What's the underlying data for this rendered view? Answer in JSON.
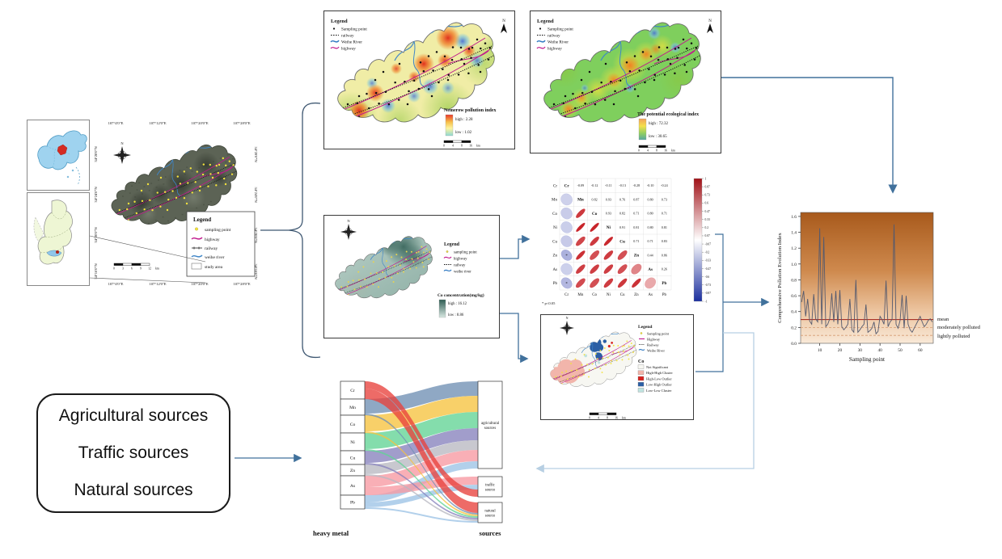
{
  "palette": {
    "arrow": "#41719c",
    "arrow_light": "#b7cfe3",
    "brace": "#3f5872",
    "highway": "#c0188c",
    "river": "#3f86c8",
    "railway": "#111111",
    "sampling_dot_yellow": "#f2e23c",
    "sampling_dot_black": "#111111"
  },
  "locator": {
    "north": "N",
    "satellite_legend": {
      "title": "Legend",
      "items": [
        "sampling point",
        "highway",
        "railway",
        "weihe river",
        "study area"
      ]
    },
    "coords_top": [
      "107°4'0\"E",
      "107°12'0\"E",
      "107°20'0\"E",
      "107°28'0\"E"
    ],
    "coords_bottom": [
      "107°4'0\"E",
      "107°12'0\"E",
      "107°20'0\"E",
      "107°28'0\"E"
    ],
    "coords_left": [
      "34°28'0\"N",
      "34°24'0\"N",
      "34°20'0\"N",
      "34°16'0\"N"
    ],
    "coords_right": [
      "34°28'0\"N",
      "34°24'0\"N",
      "34°20'0\"N",
      "34°16'0\"N"
    ],
    "scale_labels": [
      "0",
      "3",
      "6",
      "9",
      "12"
    ],
    "scale_unit": "km"
  },
  "nemerow": {
    "legend_title": "Legend",
    "legend_items": [
      "Sampling point",
      "railway",
      "Weihe River",
      "highway"
    ],
    "north": "N",
    "index_title": "Nemerow pollution index",
    "high_label": "high : 2.28",
    "low_label": "low : 1.02",
    "scale_labels": [
      "0",
      "4",
      "8",
      "16"
    ],
    "scale_unit": "km"
  },
  "ecological": {
    "legend_title": "Legend",
    "legend_items": [
      "Sampling point",
      "railway",
      "Weihe River",
      "highway"
    ],
    "north": "N",
    "index_title": "The potential ecological index",
    "high_label": "high : 72.32",
    "low_label": "low : 30.65",
    "scale_labels": [
      "0",
      "4",
      "8",
      "16"
    ],
    "scale_unit": "km"
  },
  "co_map": {
    "legend_title": "Legend",
    "legend_items": [
      "sampling point",
      "highway",
      "railway",
      "weihe river"
    ],
    "north": "N",
    "index_title": "Co concentration(mg/kg)",
    "high_label": "high : 16.12",
    "low_label": "low : 8.86"
  },
  "cluster": {
    "legend_title": "Legend",
    "legend_items": [
      "Sampling point",
      "Highway",
      "Railway",
      "Weihe River"
    ],
    "north": "N",
    "metal_label": "Co",
    "classes": [
      {
        "label": "Not Significant",
        "color": "#f7f7f2"
      },
      {
        "label": "High-High Cluster",
        "color": "#f2b5ab"
      },
      {
        "label": "High-Low Outlier",
        "color": "#d7231f"
      },
      {
        "label": "Low-High Outlier",
        "color": "#2b5fa5"
      },
      {
        "label": "Low-Low Cluster",
        "color": "#bfe3e0"
      }
    ],
    "scale_labels": [
      "0",
      "4",
      "8",
      "16"
    ],
    "scale_unit": "km"
  },
  "sources_box": {
    "lines": [
      "Agricultural sources",
      "Traffic sources",
      "Natural sources"
    ]
  },
  "chart_data": [
    {
      "type": "heatmap",
      "name": "correlation-matrix",
      "elements": [
        "Cr",
        "Mn",
        "Co",
        "Ni",
        "Cu",
        "Zn",
        "As",
        "Pb"
      ],
      "matrix": [
        [
          1,
          -0.09,
          -0.12,
          -0.11,
          -0.13,
          -0.28,
          -0.1,
          -0.24
        ],
        [
          -0.09,
          1,
          0.82,
          0.93,
          0.76,
          0.87,
          0.8,
          0.73
        ],
        [
          -0.12,
          0.82,
          1,
          0.93,
          0.82,
          0.71,
          0.8,
          0.71
        ],
        [
          -0.11,
          0.93,
          0.93,
          1,
          0.91,
          0.81,
          0.8,
          0.81
        ],
        [
          -0.13,
          0.76,
          0.82,
          0.91,
          1,
          0.71,
          0.71,
          0.83
        ],
        [
          -0.28,
          0.87,
          0.71,
          0.81,
          0.71,
          1,
          0.44,
          0.86
        ],
        [
          -0.1,
          0.8,
          0.8,
          0.8,
          0.71,
          0.44,
          1,
          0.26
        ],
        [
          -0.24,
          0.73,
          0.71,
          0.81,
          0.83,
          0.86,
          0.26,
          1
        ]
      ],
      "colorbar_ticks": [
        1,
        0.87,
        0.73,
        0.6,
        0.47,
        0.33,
        0.2,
        0.07,
        -0.07,
        -0.2,
        -0.33,
        -0.47,
        -0.6,
        -0.73,
        -0.87,
        -1
      ],
      "note": "* p<0.05",
      "legend_position": "right"
    },
    {
      "type": "line",
      "name": "comprehensive-pollution-evolution",
      "xlabel": "Sampling point",
      "ylabel": "Comprehensive Pollution Evolution Index",
      "x_ticks": [
        10,
        20,
        30,
        40,
        50,
        60
      ],
      "y_ticks": [
        "0.0",
        "0.2",
        "0.4",
        "0.6",
        "0.8",
        "1.0",
        "1.2",
        "1.4",
        "1.6"
      ],
      "ylim": [
        0,
        1.65
      ],
      "values": [
        0.52,
        0.66,
        0.34,
        0.56,
        0.28,
        0.24,
        0.62,
        0.31,
        0.27,
        1.45,
        0.24,
        1.34,
        0.21,
        0.24,
        0.31,
        0.63,
        0.27,
        0.66,
        0.24,
        0.67,
        0.21,
        0.17,
        0.2,
        0.24,
        0.56,
        0.17,
        0.14,
        0.8,
        0.14,
        0.17,
        0.21,
        0.24,
        0.49,
        0.14,
        0.16,
        0.19,
        0.27,
        0.12,
        0.15,
        0.34,
        0.3,
        0.24,
        0.79,
        0.21,
        0.27,
        0.3,
        1.5,
        0.24,
        0.19,
        0.29,
        0.61,
        0.19,
        0.6,
        0.24,
        0.17,
        0.14,
        0.19,
        0.24,
        0.29,
        0.34,
        0.27,
        0.21,
        0.24,
        0.29,
        0.31,
        0.27
      ],
      "thresholds": [
        {
          "label": "mean",
          "value": 0.3,
          "style": "solid",
          "color": "#a93226"
        },
        {
          "label": "moderately polluted",
          "value": 0.2,
          "style": "dashed",
          "color": "#d69b72"
        },
        {
          "label": "lightly polluted",
          "value": 0.1,
          "style": "dashed",
          "color": "#d69b72"
        }
      ],
      "grid": false
    },
    {
      "type": "sankey",
      "name": "source-apportionment",
      "left_title": "heavy metal",
      "right_title": "sources",
      "metals": [
        "Cr",
        "Mn",
        "Co",
        "Ni",
        "Cu",
        "Zn",
        "As",
        "Pb"
      ],
      "metal_colors": {
        "Cr": "#e8413c",
        "Mn": "#6f8fb4",
        "Co": "#f6c33f",
        "Ni": "#62d395",
        "Cu": "#8781bd",
        "Zn": "#b9b9c2",
        "As": "#f799a1",
        "Pb": "#9cc3e5"
      },
      "sources": [
        "agricultural sources",
        "traffic source",
        "natural source"
      ],
      "flows": [
        [
          "Mn",
          "agricultural sources",
          18
        ],
        [
          "Co",
          "agricultural sources",
          20
        ],
        [
          "Ni",
          "agricultural sources",
          20
        ],
        [
          "Cu",
          "agricultural sources",
          15
        ],
        [
          "Zn",
          "agricultural sources",
          12
        ],
        [
          "As",
          "agricultural sources",
          14
        ],
        [
          "Pb",
          "agricultural sources",
          9
        ],
        [
          "As",
          "traffic source",
          10
        ],
        [
          "Pb",
          "traffic source",
          6
        ],
        [
          "Cr",
          "traffic source",
          9
        ],
        [
          "Cr",
          "natural source",
          13
        ],
        [
          "Mn",
          "natural source",
          2
        ],
        [
          "Co",
          "natural source",
          2
        ],
        [
          "Ni",
          "natural source",
          2
        ],
        [
          "Cu",
          "natural source",
          2
        ],
        [
          "Zn",
          "natural source",
          2
        ],
        [
          "Pb",
          "natural source",
          2
        ]
      ]
    }
  ]
}
